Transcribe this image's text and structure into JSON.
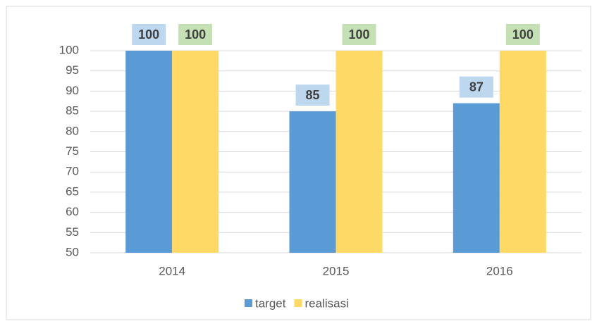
{
  "chart_data": {
    "type": "bar",
    "categories": [
      "2014",
      "2015",
      "2016"
    ],
    "series": [
      {
        "name": "target",
        "color": "#5b9bd5",
        "values": [
          100,
          85,
          87
        ]
      },
      {
        "name": "realisasi",
        "color": "#ffd966",
        "values": [
          100,
          100,
          100
        ]
      }
    ],
    "ylim": [
      50,
      100
    ],
    "yticks": [
      50,
      55,
      60,
      65,
      70,
      75,
      80,
      85,
      90,
      95,
      100
    ],
    "grid": true,
    "legend": "bottom"
  }
}
